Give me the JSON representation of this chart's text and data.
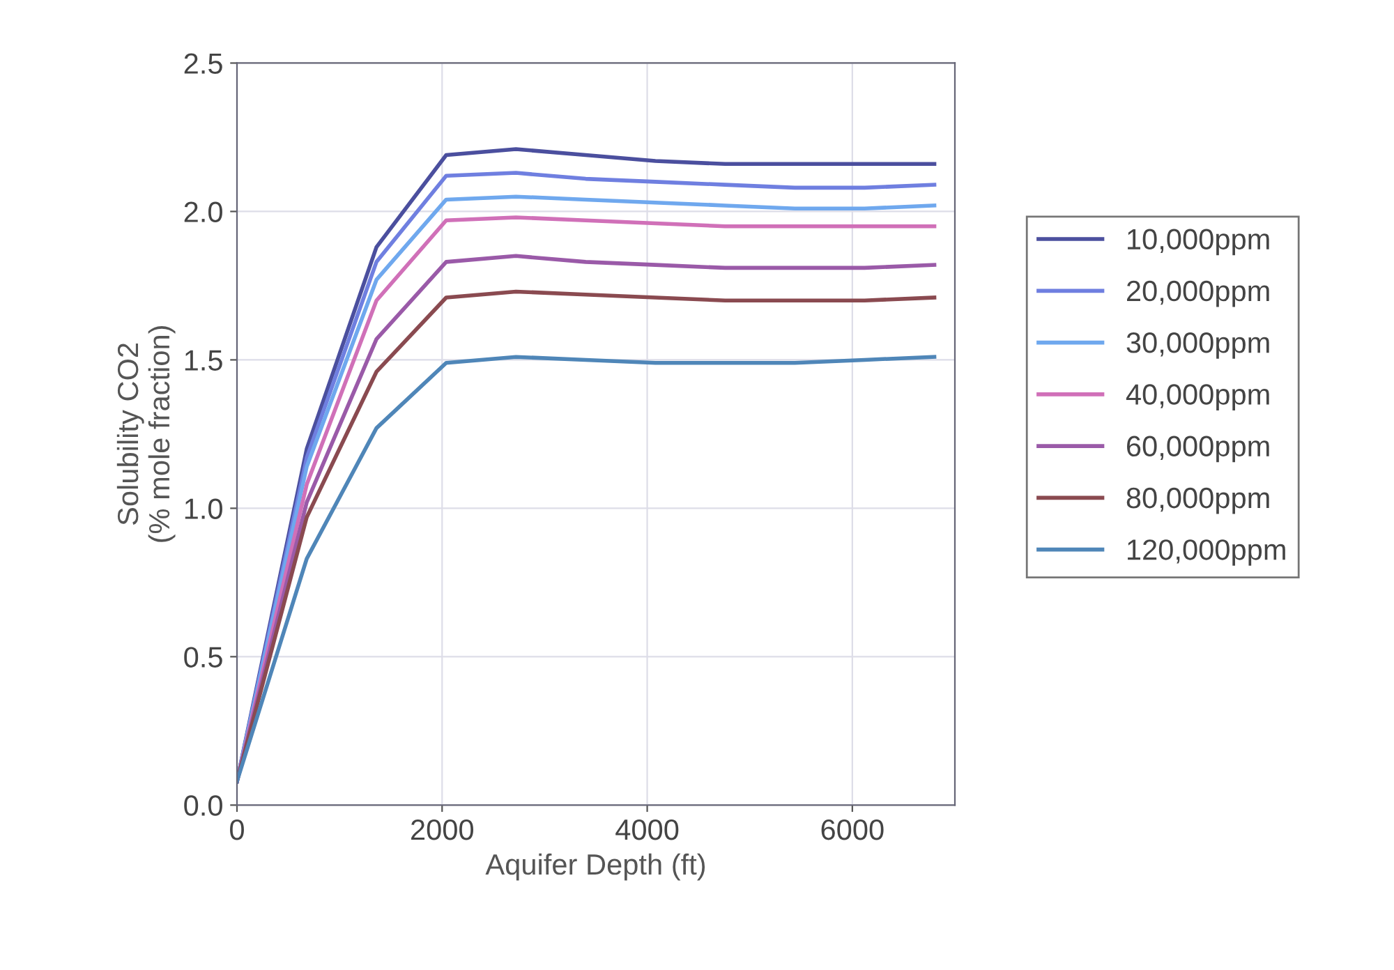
{
  "chart_data": {
    "type": "line",
    "xlabel": "Aquifer Depth (ft)",
    "ylabel": "Solubility CO2\n(% mole fraction)",
    "x": [
      0,
      680,
      1360,
      2040,
      2720,
      3400,
      4080,
      4760,
      5440,
      6120,
      6800
    ],
    "xlim": [
      0,
      7000
    ],
    "xticks": [
      0,
      2000,
      4000,
      6000
    ],
    "ylim": [
      0,
      2.5
    ],
    "yticks": [
      {
        "value": 0,
        "label": "0.0"
      },
      {
        "value": 0.5,
        "label": "0.5"
      },
      {
        "value": 1,
        "label": "1.0"
      },
      {
        "value": 1.5,
        "label": "1.5"
      },
      {
        "value": 2,
        "label": "2.0"
      },
      {
        "value": 2.5,
        "label": "2.5"
      }
    ],
    "grid": true,
    "legend": "right",
    "marker": "none",
    "line_style": "solid",
    "series": [
      {
        "name": "10,000ppm",
        "color": "#4b4f9e",
        "values": [
          0.08,
          1.2,
          1.88,
          2.19,
          2.21,
          2.19,
          2.17,
          2.16,
          2.16,
          2.16,
          2.16
        ]
      },
      {
        "name": "20,000ppm",
        "color": "#6f7fe0",
        "values": [
          0.08,
          1.17,
          1.83,
          2.12,
          2.13,
          2.11,
          2.1,
          2.09,
          2.08,
          2.08,
          2.09
        ]
      },
      {
        "name": "30,000ppm",
        "color": "#6fa8ee",
        "values": [
          0.08,
          1.14,
          1.77,
          2.04,
          2.05,
          2.04,
          2.03,
          2.02,
          2.01,
          2.01,
          2.02
        ]
      },
      {
        "name": "40,000ppm",
        "color": "#d070b8",
        "values": [
          0.08,
          1.08,
          1.7,
          1.97,
          1.98,
          1.97,
          1.96,
          1.95,
          1.95,
          1.95,
          1.95
        ]
      },
      {
        "name": "60,000ppm",
        "color": "#9a5aa8",
        "values": [
          0.08,
          1.02,
          1.57,
          1.83,
          1.85,
          1.83,
          1.82,
          1.81,
          1.81,
          1.81,
          1.82
        ]
      },
      {
        "name": "80,000ppm",
        "color": "#8a4a50",
        "values": [
          0.08,
          0.97,
          1.46,
          1.71,
          1.73,
          1.72,
          1.71,
          1.7,
          1.7,
          1.7,
          1.71
        ]
      },
      {
        "name": "120,000ppm",
        "color": "#4f86b8",
        "values": [
          0.08,
          0.83,
          1.27,
          1.49,
          1.51,
          1.5,
          1.49,
          1.49,
          1.49,
          1.5,
          1.51
        ]
      }
    ]
  }
}
